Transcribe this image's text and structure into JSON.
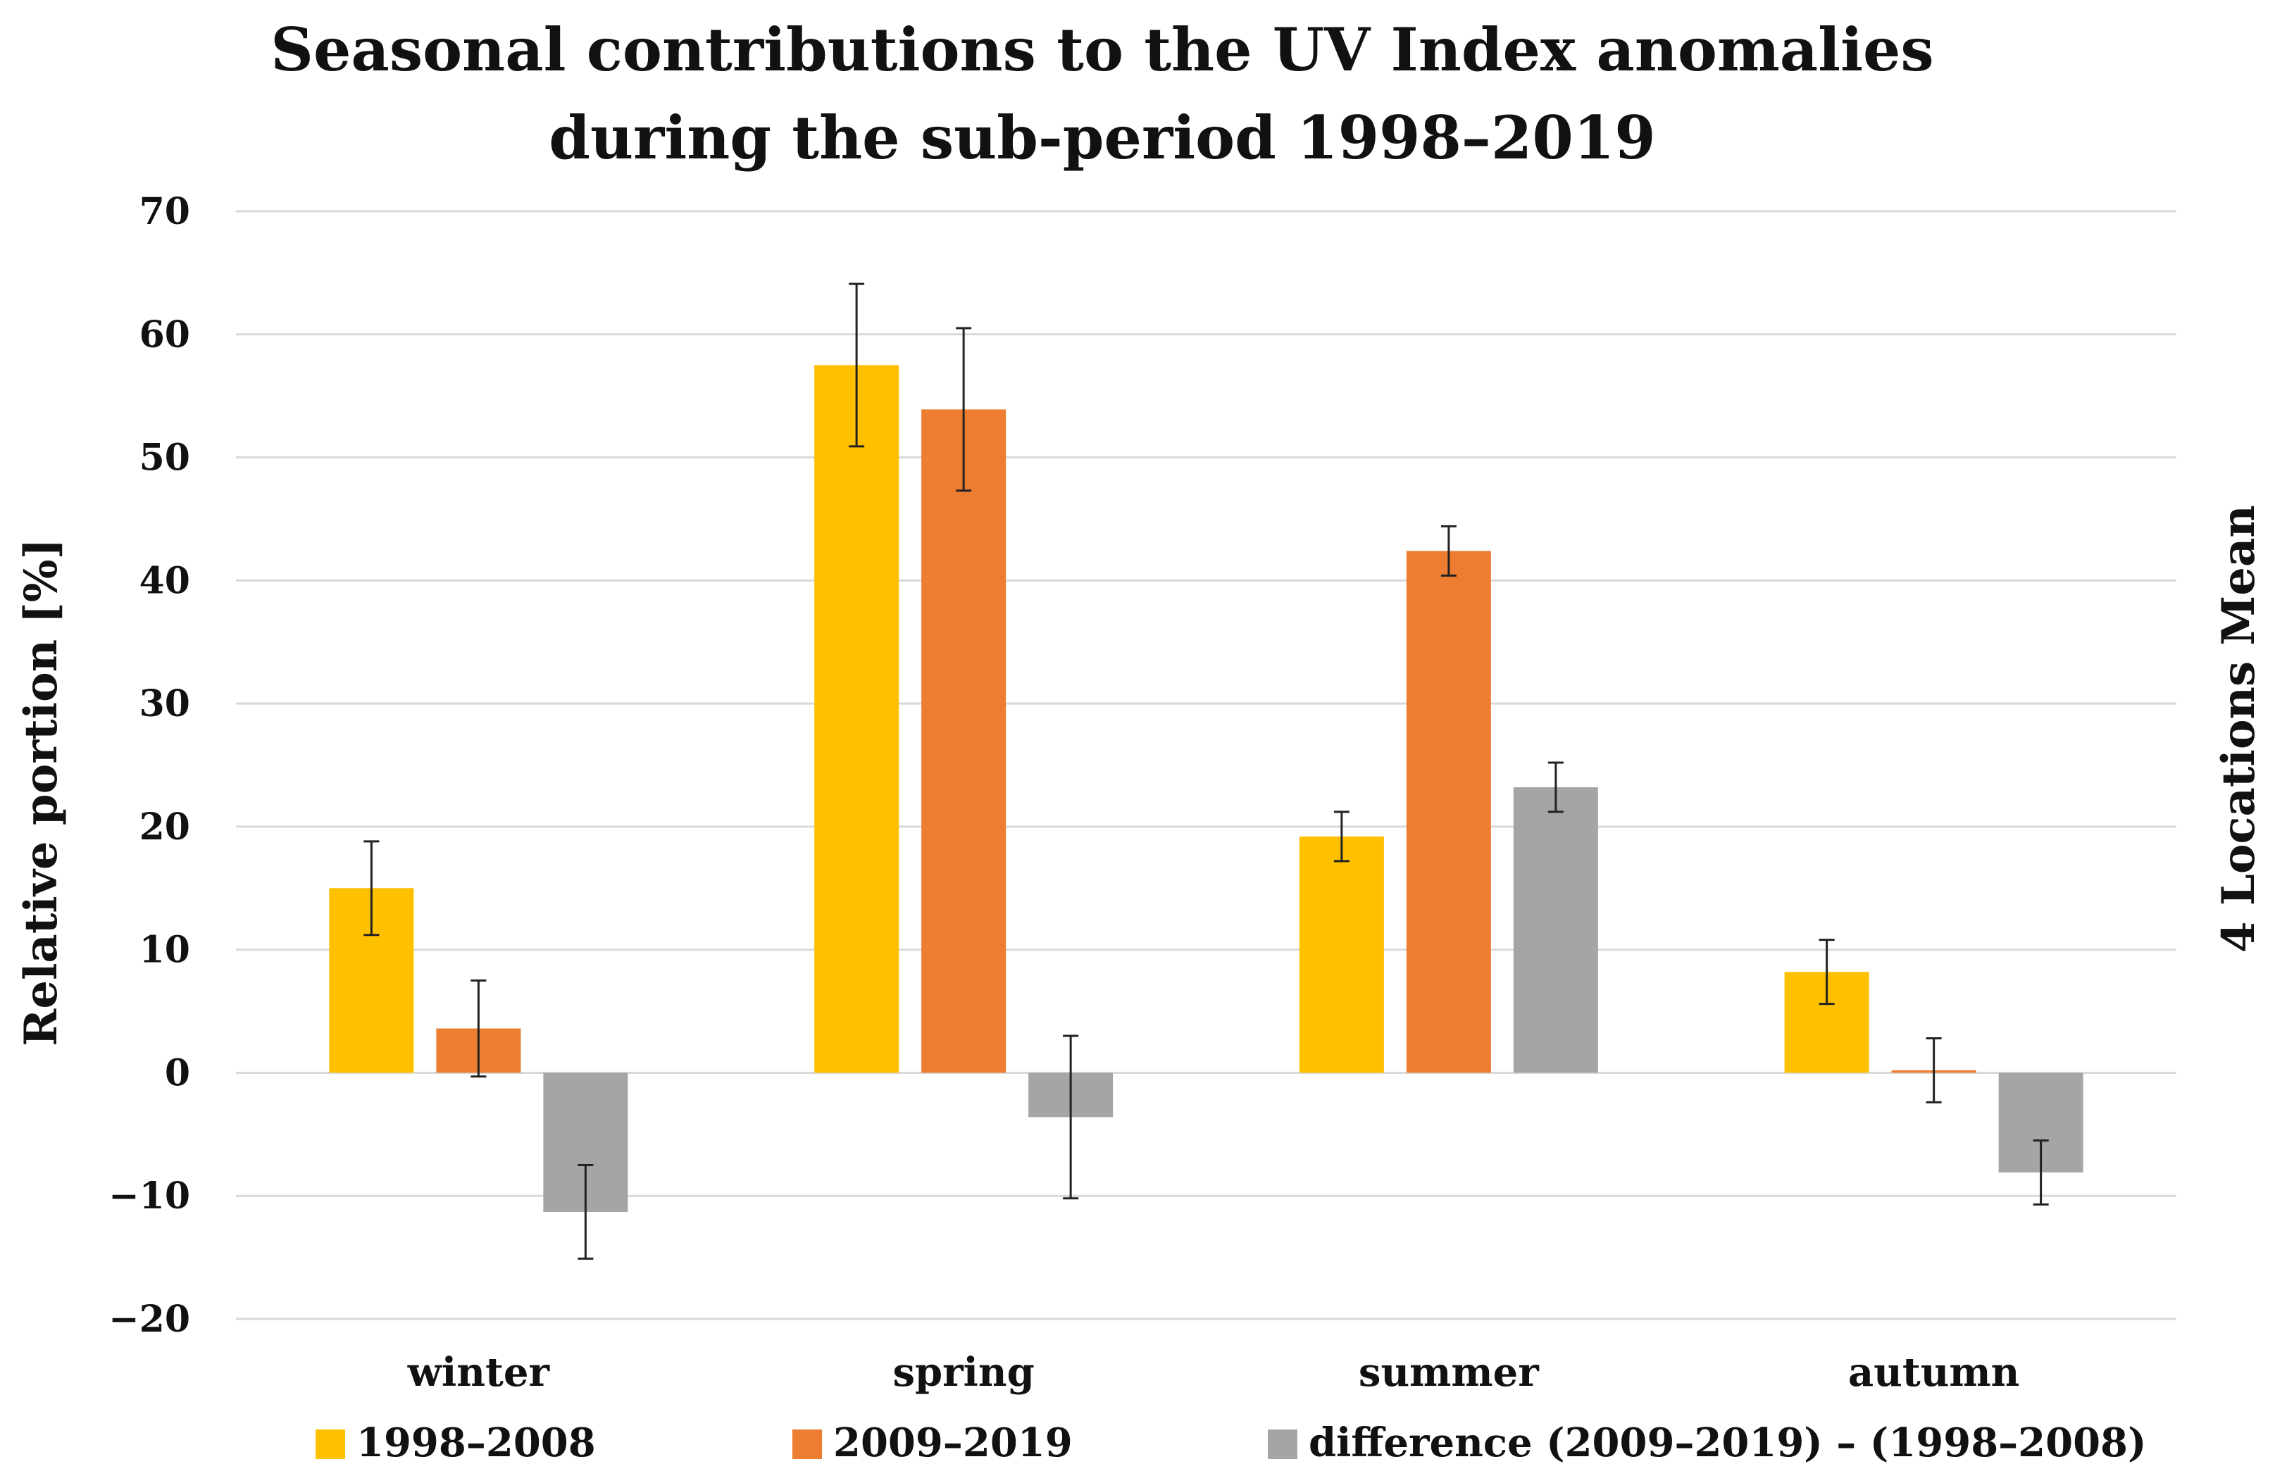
{
  "chart_data": {
    "type": "bar",
    "title_lines": [
      "Seasonal contributions to the UV Index anomalies",
      "during the sub-period 1998–2019"
    ],
    "ylabel": "Relative portion  [%]",
    "right_label": "4 Locations Mean",
    "xlabel": "",
    "ylim": [
      -20,
      70
    ],
    "yticks": [
      70,
      60,
      50,
      40,
      30,
      20,
      10,
      0,
      -10,
      -20
    ],
    "ytick_labels": [
      "70",
      "60",
      "50",
      "40",
      "30",
      "20",
      "10",
      "0",
      "−10",
      "−20"
    ],
    "grid": true,
    "legend_position": "bottom",
    "categories": [
      "winter",
      "spring",
      "summer",
      "autumn"
    ],
    "series": [
      {
        "name": "1998–2008",
        "color": "#FFC000",
        "values": [
          15.0,
          57.5,
          19.2,
          8.2
        ],
        "error": [
          3.8,
          6.6,
          2.0,
          2.6
        ]
      },
      {
        "name": "2009–2019",
        "color": "#ED7D31",
        "values": [
          3.6,
          53.9,
          42.4,
          0.2
        ],
        "error": [
          3.9,
          6.6,
          2.0,
          2.6
        ]
      },
      {
        "name": "difference (2009–2019) – (1998–2008)",
        "color": "#A5A5A5",
        "values": [
          -11.3,
          -3.6,
          23.2,
          -8.1
        ],
        "error": [
          3.8,
          6.6,
          2.0,
          2.6
        ]
      }
    ]
  }
}
